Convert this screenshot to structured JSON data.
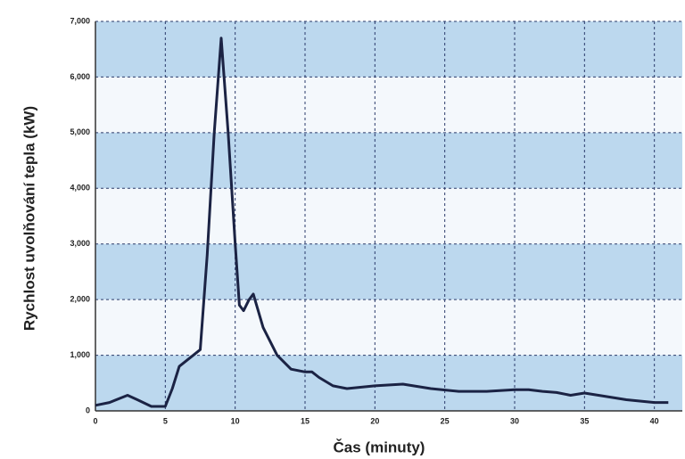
{
  "chart_data": {
    "type": "line",
    "x_label": "Čas (minuty)",
    "y_label": "Rychlost uvolňování tepla (kW)",
    "xlim": [
      0,
      42
    ],
    "ylim": [
      0,
      7000
    ],
    "xticks": [
      0,
      5,
      10,
      15,
      20,
      25,
      30,
      35,
      40
    ],
    "yticks": [
      0,
      {
        "value": 1000,
        "label": "1,000"
      },
      {
        "value": 2000,
        "label": "2,000"
      },
      {
        "value": 3000,
        "label": "3,000"
      },
      {
        "value": 4000,
        "label": "4,000"
      },
      {
        "value": 5000,
        "label": "5,000"
      },
      {
        "value": 6000,
        "label": "6,000"
      },
      {
        "value": 7000,
        "label": "7,000"
      }
    ],
    "grid": true,
    "series": [
      {
        "color": "#1b2344",
        "x": [
          0,
          1,
          2.3,
          3,
          4,
          5,
          5.5,
          6,
          7,
          7.5,
          8,
          8.5,
          9,
          9.5,
          10,
          10.3,
          10.6,
          11,
          11.3,
          12,
          13,
          14,
          15,
          15.5,
          16,
          17,
          18,
          20,
          22,
          24,
          26,
          28,
          30,
          31,
          32,
          33,
          34,
          35,
          36,
          38,
          40,
          41
        ],
        "values": [
          100,
          150,
          280,
          200,
          80,
          80,
          400,
          800,
          1000,
          1100,
          2800,
          5000,
          6700,
          5000,
          3000,
          1900,
          1800,
          2000,
          2100,
          1500,
          1000,
          750,
          700,
          700,
          600,
          450,
          400,
          450,
          480,
          400,
          350,
          350,
          380,
          380,
          350,
          330,
          280,
          320,
          280,
          200,
          150,
          150
        ]
      }
    ]
  }
}
